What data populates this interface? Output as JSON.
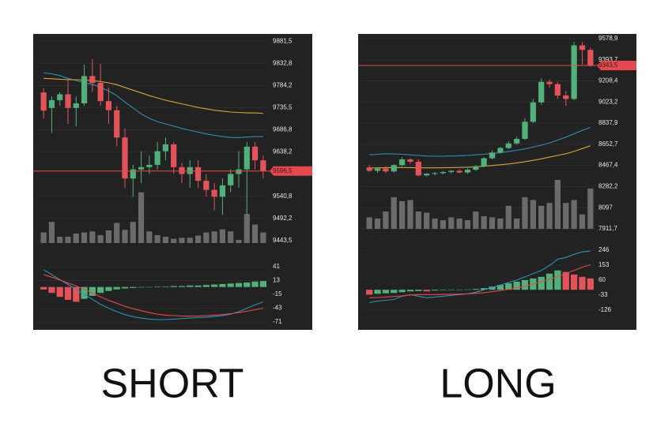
{
  "chart_data": [
    {
      "type": "candlestick",
      "title": "SHORT",
      "open": [
        9769,
        9735,
        9752,
        9765,
        9735,
        9745,
        9805,
        9790,
        9750,
        9730,
        9670,
        9580,
        9600,
        9605,
        9610,
        9640,
        9655,
        9605,
        9590,
        9605,
        9575,
        9555,
        9540,
        9565,
        9590,
        9600,
        9650,
        9620
      ],
      "high": [
        9778,
        9760,
        9770,
        9800,
        9760,
        9830,
        9842,
        9832,
        9780,
        9740,
        9690,
        9610,
        9640,
        9630,
        9660,
        9670,
        9660,
        9615,
        9620,
        9620,
        9590,
        9570,
        9580,
        9600,
        9640,
        9660,
        9660,
        9630
      ],
      "low": [
        9712,
        9680,
        9740,
        9700,
        9695,
        9740,
        9770,
        9740,
        9700,
        9650,
        9560,
        9540,
        9570,
        9590,
        9600,
        9620,
        9590,
        9570,
        9560,
        9560,
        9540,
        9510,
        9500,
        9550,
        9560,
        9500,
        9600,
        9580
      ],
      "close": [
        9729,
        9752,
        9765,
        9735,
        9745,
        9805,
        9790,
        9750,
        9730,
        9670,
        9580,
        9600,
        9605,
        9610,
        9640,
        9655,
        9605,
        9590,
        9605,
        9575,
        9555,
        9540,
        9565,
        9590,
        9600,
        9650,
        9620,
        9596.5
      ],
      "volume": [
        20,
        40,
        12,
        12,
        18,
        20,
        22,
        15,
        24,
        38,
        25,
        40,
        96,
        22,
        15,
        12,
        8,
        10,
        10,
        14,
        20,
        22,
        26,
        22,
        6,
        55,
        35,
        20
      ],
      "volume_lim": [
        0,
        100
      ],
      "colors": {
        "up": "#52b07a",
        "down": "#e5535a"
      },
      "series": [
        {
          "color": "#2f8fb8",
          "values": [
            9812,
            9810,
            9806,
            9800,
            9795,
            9790,
            9787,
            9780,
            9772,
            9762,
            9748,
            9735,
            9722,
            9712,
            9705,
            9700,
            9695,
            9690,
            9686,
            9682,
            9678,
            9675,
            9672,
            9670,
            9670,
            9671,
            9672,
            9672
          ]
        },
        {
          "color": "#d9a23a",
          "values": [
            9800,
            9799,
            9798,
            9797,
            9797,
            9796,
            9795,
            9793,
            9790,
            9786,
            9780,
            9774,
            9768,
            9762,
            9757,
            9752,
            9748,
            9744,
            9740,
            9736,
            9733,
            9730,
            9728,
            9726,
            9725,
            9724,
            9724,
            9723
          ]
        }
      ],
      "current_price": {
        "value": 9596.5,
        "label": "9596,5",
        "color": "#e5484d"
      },
      "ylim": [
        9421,
        9894
      ],
      "yticks": [
        {
          "value": 9881.5,
          "label": "9881,5"
        },
        {
          "value": 9832.8,
          "label": "9832,8"
        },
        {
          "value": 9784.2,
          "label": "9784,2"
        },
        {
          "value": 9735.5,
          "label": "9735,5"
        },
        {
          "value": 9686.8,
          "label": "9686,8"
        },
        {
          "value": 9638.2,
          "label": "9638,2"
        },
        {
          "value": 9540.8,
          "label": "9540,8"
        },
        {
          "value": 9492.2,
          "label": "9492,2"
        },
        {
          "value": 9443.5,
          "label": "9443,5"
        }
      ],
      "grid": true,
      "macd": {
        "histogram": [
          -5,
          -12,
          -20,
          -26,
          -30,
          -24,
          -18,
          -12,
          -8,
          -5,
          -3,
          -2,
          -1,
          0,
          1,
          1,
          2,
          2,
          3,
          3,
          4,
          5,
          6,
          7,
          8,
          9,
          11,
          12
        ],
        "series": [
          {
            "color": "#2f8fb8",
            "values": [
              35,
              25,
              15,
              5,
              -5,
              -15,
              -25,
              -35,
              -43,
              -50,
              -56,
              -60,
              -63,
              -65,
              -66,
              -66,
              -65,
              -64,
              -63,
              -62,
              -61,
              -60,
              -58,
              -55,
              -50,
              -43,
              -36,
              -30
            ]
          },
          {
            "color": "#e5484d",
            "values": [
              25,
              20,
              14,
              8,
              2,
              -5,
              -12,
              -20,
              -27,
              -33,
              -39,
              -44,
              -48,
              -52,
              -55,
              -57,
              -58,
              -59,
              -59,
              -59,
              -58,
              -57,
              -56,
              -54,
              -52,
              -49,
              -46,
              -43
            ]
          }
        ],
        "ylim": [
          -82,
          57
        ],
        "yticks": [
          41,
          13,
          -15,
          -43,
          -71
        ]
      }
    },
    {
      "type": "candlestick",
      "title": "LONG",
      "open": [
        8450,
        8420,
        8440,
        8415,
        8470,
        8520,
        8500,
        8380,
        8395,
        8400,
        8410,
        8420,
        8405,
        8430,
        8460,
        8530,
        8580,
        8620,
        8660,
        8700,
        8850,
        9020,
        9200,
        9180,
        9080,
        9050,
        9520,
        9480
      ],
      "high": [
        8470,
        8450,
        8460,
        8480,
        8540,
        8530,
        8520,
        8400,
        8410,
        8420,
        8425,
        8435,
        8440,
        8470,
        8540,
        8600,
        8630,
        8680,
        8720,
        8880,
        9050,
        9230,
        9220,
        9200,
        9120,
        9550,
        9550,
        9500
      ],
      "low": [
        8410,
        8400,
        8400,
        8405,
        8460,
        8480,
        8370,
        8370,
        8380,
        8390,
        8395,
        8400,
        8395,
        8420,
        8450,
        8520,
        8570,
        8610,
        8650,
        8690,
        8840,
        9000,
        9150,
        9050,
        8990,
        9040,
        9350,
        9330
      ],
      "close": [
        8420,
        8440,
        8415,
        8470,
        8520,
        8500,
        8380,
        8395,
        8400,
        8410,
        8420,
        8405,
        8430,
        8460,
        8530,
        8580,
        8620,
        8660,
        8700,
        8850,
        9020,
        9200,
        9180,
        9080,
        9050,
        9520,
        9480,
        9343.5
      ],
      "volume": [
        20,
        18,
        30,
        55,
        48,
        50,
        30,
        28,
        18,
        15,
        20,
        18,
        15,
        30,
        22,
        20,
        18,
        40,
        18,
        55,
        50,
        40,
        45,
        85,
        45,
        50,
        25,
        70
      ],
      "volume_lim": [
        0,
        100
      ],
      "colors": {
        "up": "#52b07a",
        "down": "#e5535a"
      },
      "series": [
        {
          "color": "#2f8fb8",
          "values": [
            8560,
            8565,
            8570,
            8568,
            8565,
            8560,
            8555,
            8550,
            8548,
            8548,
            8550,
            8552,
            8555,
            8560,
            8565,
            8572,
            8580,
            8590,
            8600,
            8612,
            8628,
            8645,
            8665,
            8690,
            8715,
            8745,
            8775,
            8800
          ]
        },
        {
          "color": "#d9a23a",
          "values": [
            8445,
            8446,
            8447,
            8448,
            8449,
            8448,
            8447,
            8446,
            8446,
            8447,
            8448,
            8450,
            8452,
            8455,
            8460,
            8466,
            8473,
            8480,
            8490,
            8500,
            8512,
            8525,
            8540,
            8555,
            8570,
            8590,
            8615,
            8640
          ]
        }
      ],
      "current_price": {
        "value": 9343.5,
        "label": "9343,5",
        "color": "#e5484d"
      },
      "ylim": [
        7718,
        9606
      ],
      "yticks": [
        {
          "value": 9578.9,
          "label": "9578,9"
        },
        {
          "value": 9393.7,
          "label": "9393,7"
        },
        {
          "value": 9208.4,
          "label": "9208,4"
        },
        {
          "value": 9023.2,
          "label": "9023,2"
        },
        {
          "value": 8837.9,
          "label": "8837,9"
        },
        {
          "value": 8652.7,
          "label": "8652,7"
        },
        {
          "value": 8467.4,
          "label": "8467,4"
        },
        {
          "value": 8282.2,
          "label": "8282,2"
        },
        8097,
        {
          "value": 7911.7,
          "label": "7911,7"
        }
      ],
      "grid": true,
      "macd": {
        "histogram": [
          -30,
          -25,
          -22,
          -20,
          -15,
          -10,
          -8,
          -10,
          -5,
          -3,
          -2,
          -1,
          2,
          5,
          10,
          20,
          30,
          40,
          50,
          60,
          70,
          80,
          100,
          120,
          110,
          95,
          80,
          70
        ],
        "series": [
          {
            "color": "#2f8fb8",
            "values": [
              -80,
              -70,
              -65,
              -60,
              -40,
              -30,
              -40,
              -50,
              -45,
              -40,
              -35,
              -30,
              -25,
              -15,
              0,
              15,
              30,
              45,
              60,
              80,
              100,
              120,
              150,
              190,
              200,
              220,
              235,
              240
            ]
          },
          {
            "color": "#e5484d",
            "values": [
              -50,
              -48,
              -45,
              -42,
              -38,
              -32,
              -30,
              -30,
              -30,
              -29,
              -28,
              -27,
              -25,
              -22,
              -18,
              -12,
              -5,
              3,
              12,
              22,
              35,
              50,
              65,
              80,
              100,
              120,
              140,
              155
            ]
          }
        ],
        "ylim": [
          -234,
          280
        ],
        "yticks": [
          246,
          153,
          60,
          -33,
          -126
        ]
      }
    }
  ]
}
